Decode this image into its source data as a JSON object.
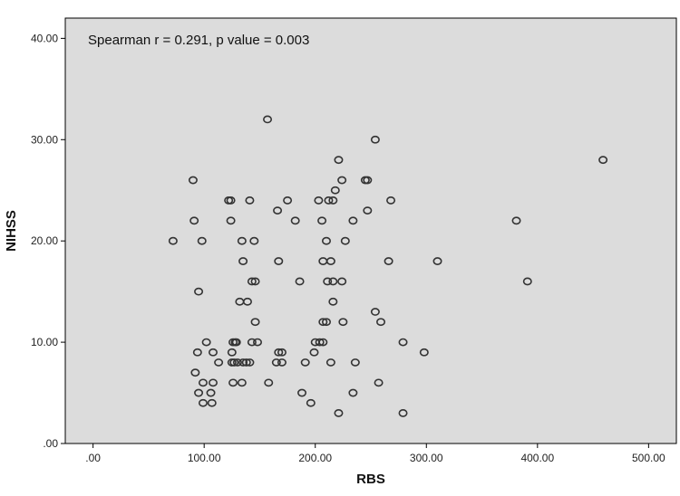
{
  "chart_data": {
    "type": "scatter",
    "title": "",
    "annotation": "Spearman r = 0.291, p value = 0.003",
    "xlabel": "RBS",
    "ylabel": "NIHSS",
    "xlim": [
      -25,
      525
    ],
    "ylim": [
      0,
      42
    ],
    "x_ticks": [
      0,
      100,
      200,
      300,
      400,
      500
    ],
    "x_tick_labels": [
      ".00",
      "100.00",
      "200.00",
      "300.00",
      "400.00",
      "500.00"
    ],
    "y_ticks": [
      0,
      10,
      20,
      30,
      40
    ],
    "y_tick_labels": [
      ".00",
      "10.00",
      "20.00",
      "30.00",
      "40.00"
    ],
    "grid": false,
    "marker": "open-circle",
    "colors": {
      "plot_background": "#dcdcdc",
      "marker": "#333333",
      "axis": "#000000"
    },
    "series": [
      {
        "points": [
          [
            157,
            32
          ],
          [
            254,
            30
          ],
          [
            459,
            28
          ],
          [
            221,
            28
          ],
          [
            224,
            26
          ],
          [
            245,
            26
          ],
          [
            247,
            26
          ],
          [
            90,
            26
          ],
          [
            218,
            25
          ],
          [
            122,
            24
          ],
          [
            124,
            24
          ],
          [
            141,
            24
          ],
          [
            175,
            24
          ],
          [
            203,
            24
          ],
          [
            212,
            24
          ],
          [
            216,
            24
          ],
          [
            268,
            24
          ],
          [
            247,
            23
          ],
          [
            166,
            23
          ],
          [
            91,
            22
          ],
          [
            124,
            22
          ],
          [
            182,
            22
          ],
          [
            206,
            22
          ],
          [
            234,
            22
          ],
          [
            381,
            22
          ],
          [
            72,
            20
          ],
          [
            98,
            20
          ],
          [
            134,
            20
          ],
          [
            145,
            20
          ],
          [
            210,
            20
          ],
          [
            227,
            20
          ],
          [
            135,
            18
          ],
          [
            167,
            18
          ],
          [
            207,
            18
          ],
          [
            214,
            18
          ],
          [
            266,
            18
          ],
          [
            310,
            18
          ],
          [
            146,
            16
          ],
          [
            143,
            16
          ],
          [
            186,
            16
          ],
          [
            211,
            16
          ],
          [
            216,
            16
          ],
          [
            224,
            16
          ],
          [
            391,
            16
          ],
          [
            95,
            15
          ],
          [
            216,
            14
          ],
          [
            132,
            14
          ],
          [
            139,
            14
          ],
          [
            254,
            13
          ],
          [
            146,
            12
          ],
          [
            207,
            12
          ],
          [
            210,
            12
          ],
          [
            225,
            12
          ],
          [
            259,
            12
          ],
          [
            102,
            10
          ],
          [
            126,
            10
          ],
          [
            128,
            10
          ],
          [
            129,
            10
          ],
          [
            143,
            10
          ],
          [
            148,
            10
          ],
          [
            200,
            10
          ],
          [
            204,
            10
          ],
          [
            207,
            10
          ],
          [
            279,
            10
          ],
          [
            94,
            9
          ],
          [
            108,
            9
          ],
          [
            125,
            9
          ],
          [
            167,
            9
          ],
          [
            170,
            9
          ],
          [
            199,
            9
          ],
          [
            298,
            9
          ],
          [
            113,
            8
          ],
          [
            125,
            8
          ],
          [
            127,
            8
          ],
          [
            130,
            8
          ],
          [
            135,
            8
          ],
          [
            138,
            8
          ],
          [
            141,
            8
          ],
          [
            165,
            8
          ],
          [
            170,
            8
          ],
          [
            191,
            8
          ],
          [
            214,
            8
          ],
          [
            236,
            8
          ],
          [
            92,
            7
          ],
          [
            99,
            6
          ],
          [
            108,
            6
          ],
          [
            126,
            6
          ],
          [
            134,
            6
          ],
          [
            158,
            6
          ],
          [
            257,
            6
          ],
          [
            95,
            5
          ],
          [
            106,
            5
          ],
          [
            188,
            5
          ],
          [
            234,
            5
          ],
          [
            99,
            4
          ],
          [
            107,
            4
          ],
          [
            196,
            4
          ],
          [
            221,
            3
          ],
          [
            279,
            3
          ]
        ]
      }
    ]
  }
}
